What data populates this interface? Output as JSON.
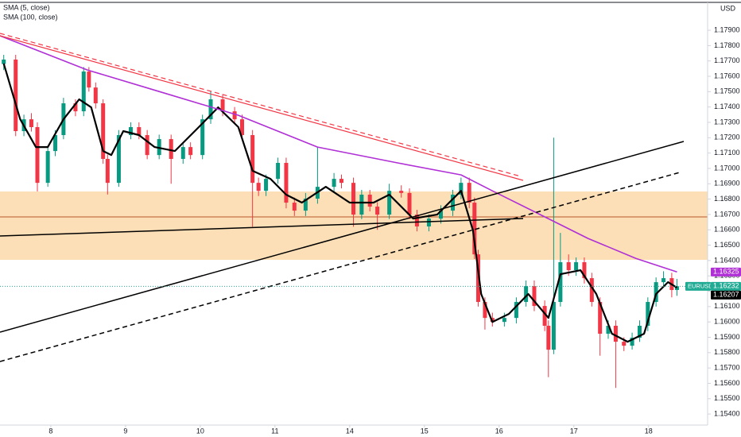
{
  "chart_data": {
    "type": "candlestick",
    "currency": "USD",
    "xlim": [
      -0.68,
      8.79
    ],
    "ylim": [
      1.15328,
      1.18097
    ],
    "xticks": [
      {
        "value": 0,
        "label": "8"
      },
      {
        "value": 1,
        "label": "9"
      },
      {
        "value": 2,
        "label": "10"
      },
      {
        "value": 3,
        "label": "11"
      },
      {
        "value": 4,
        "label": "14"
      },
      {
        "value": 5,
        "label": "15"
      },
      {
        "value": 6,
        "label": "16"
      },
      {
        "value": 7,
        "label": "17"
      },
      {
        "value": 8,
        "label": "18"
      }
    ],
    "yticks": [
      {
        "value": 1.179,
        "label": "1.17900"
      },
      {
        "value": 1.178,
        "label": "1.17800"
      },
      {
        "value": 1.177,
        "label": "1.17700"
      },
      {
        "value": 1.176,
        "label": "1.17600"
      },
      {
        "value": 1.175,
        "label": "1.17500"
      },
      {
        "value": 1.174,
        "label": "1.17400"
      },
      {
        "value": 1.173,
        "label": "1.17300"
      },
      {
        "value": 1.172,
        "label": "1.17200"
      },
      {
        "value": 1.171,
        "label": "1.17100"
      },
      {
        "value": 1.17,
        "label": "1.17000"
      },
      {
        "value": 1.169,
        "label": "1.16900"
      },
      {
        "value": 1.168,
        "label": "1.16800"
      },
      {
        "value": 1.167,
        "label": "1.16700"
      },
      {
        "value": 1.166,
        "label": "1.16600"
      },
      {
        "value": 1.165,
        "label": "1.16500"
      },
      {
        "value": 1.164,
        "label": "1.16400"
      },
      {
        "value": 1.163,
        "label": "1.16300"
      },
      {
        "value": 1.162,
        "label": "1.16200"
      },
      {
        "value": 1.161,
        "label": "1.16100"
      },
      {
        "value": 1.16,
        "label": "1.16000"
      },
      {
        "value": 1.159,
        "label": "1.15900"
      },
      {
        "value": 1.158,
        "label": "1.15800"
      },
      {
        "value": 1.157,
        "label": "1.15700"
      },
      {
        "value": 1.156,
        "label": "1.15600"
      },
      {
        "value": 1.155,
        "label": "1.15500"
      },
      {
        "value": 1.154,
        "label": "1.15400"
      }
    ],
    "up_color": "#089981",
    "down_color": "#f23645",
    "candles": {
      "x": [
        -0.63,
        -0.47,
        -0.36,
        -0.26,
        -0.18,
        -0.04,
        0.06,
        0.17,
        0.33,
        0.44,
        0.51,
        0.6,
        0.7,
        0.76,
        0.91,
        1.07,
        1.18,
        1.29,
        1.45,
        1.61,
        1.77,
        1.87,
        2.03,
        2.14,
        2.3,
        2.46,
        2.56,
        2.7,
        2.78,
        2.88,
        3.04,
        3.15,
        3.26,
        3.41,
        3.57,
        3.79,
        3.89,
        4.05,
        4.16,
        4.27,
        4.37,
        4.53,
        4.69,
        4.8,
        4.9,
        5.06,
        5.22,
        5.38,
        5.49,
        5.6,
        5.67,
        5.72,
        5.81,
        5.91,
        6.07,
        6.23,
        6.36,
        6.47,
        6.61,
        6.66,
        6.73,
        6.82,
        6.93,
        7.03,
        7.14,
        7.24,
        7.35,
        7.46,
        7.56,
        7.67,
        7.78,
        7.88,
        7.99,
        8.1,
        8.2,
        8.31,
        8.38
      ],
      "open": [
        1.1768,
        1.17709,
        1.17243,
        1.1732,
        1.17269,
        1.16906,
        1.17113,
        1.17217,
        1.17424,
        1.17372,
        1.17631,
        1.17527,
        1.17424,
        1.17062,
        1.16906,
        1.17217,
        1.17269,
        1.17217,
        1.17087,
        1.17191,
        1.17062,
        1.17139,
        1.17087,
        1.1732,
        1.1745,
        1.17372,
        1.1732,
        1.17217,
        1.16906,
        1.16854,
        1.16932,
        1.17036,
        1.16777,
        1.16725,
        1.16803,
        1.1688,
        1.16932,
        1.16906,
        1.16699,
        1.16829,
        1.16751,
        1.16699,
        1.16854,
        1.1684,
        1.16699,
        1.16622,
        1.16673,
        1.16725,
        1.16829,
        1.16906,
        1.16777,
        1.1644,
        1.1613,
        1.16026,
        1.16,
        1.16026,
        1.1613,
        1.16233,
        1.16104,
        1.15975,
        1.15819,
        1.1613,
        1.16389,
        1.16337,
        1.16389,
        1.16285,
        1.1613,
        1.15923,
        1.15975,
        1.15871,
        1.15845,
        1.15897,
        1.15975,
        1.1613,
        1.16259,
        1.16285,
        1.16208
      ],
      "high": [
        1.1774,
        1.1774,
        1.1735,
        1.1736,
        1.173,
        1.1714,
        1.1725,
        1.1746,
        1.1745,
        1.1766,
        1.1766,
        1.1756,
        1.1745,
        1.1709,
        1.1725,
        1.173,
        1.173,
        1.1725,
        1.1722,
        1.1722,
        1.1717,
        1.1717,
        1.1735,
        1.175,
        1.1748,
        1.174,
        1.1735,
        1.1725,
        1.1694,
        1.1696,
        1.1707,
        1.1707,
        1.1681,
        1.1684,
        1.1714,
        1.1697,
        1.1696,
        1.1694,
        1.1686,
        1.1686,
        1.1678,
        1.169,
        1.1689,
        1.1687,
        1.1673,
        1.167,
        1.1676,
        1.1686,
        1.1694,
        1.1694,
        1.1681,
        1.1647,
        1.1616,
        1.1606,
        1.1606,
        1.1616,
        1.1627,
        1.1627,
        1.1614,
        1.1601,
        1.172,
        1.1658,
        1.1644,
        1.1642,
        1.1642,
        1.1632,
        1.1616,
        1.1601,
        1.1601,
        1.159,
        1.1593,
        1.1601,
        1.1616,
        1.1629,
        1.1633,
        1.1632,
        1.1628
      ],
      "low": [
        1.1764,
        1.1721,
        1.1721,
        1.1724,
        1.1685,
        1.1688,
        1.1708,
        1.1719,
        1.1734,
        1.1734,
        1.175,
        1.1739,
        1.1703,
        1.1683,
        1.1688,
        1.1719,
        1.1719,
        1.1706,
        1.1706,
        1.169,
        1.1703,
        1.1706,
        1.1706,
        1.1729,
        1.1734,
        1.1729,
        1.1719,
        1.1662,
        1.1682,
        1.1682,
        1.169,
        1.1674,
        1.1669,
        1.1669,
        1.1677,
        1.1685,
        1.1687,
        1.1662,
        1.1667,
        1.1672,
        1.166,
        1.1667,
        1.1681,
        1.1667,
        1.1659,
        1.1659,
        1.1664,
        1.1669,
        1.168,
        1.1674,
        1.1641,
        1.161,
        1.1595,
        1.1597,
        1.1597,
        1.1599,
        1.161,
        1.1607,
        1.1594,
        1.1564,
        1.1579,
        1.161,
        1.163,
        1.163,
        1.1625,
        1.161,
        1.1578,
        1.1589,
        1.1557,
        1.1581,
        1.1582,
        1.1587,
        1.1594,
        1.161,
        1.1623,
        1.1616,
        1.1617
      ],
      "close": [
        1.17709,
        1.17243,
        1.1732,
        1.17269,
        1.16906,
        1.17113,
        1.17217,
        1.17424,
        1.17372,
        1.17631,
        1.17527,
        1.17424,
        1.17062,
        1.16906,
        1.17217,
        1.17269,
        1.17217,
        1.17087,
        1.17191,
        1.17062,
        1.17139,
        1.17087,
        1.1732,
        1.1745,
        1.17372,
        1.1732,
        1.17217,
        1.16906,
        1.16854,
        1.16932,
        1.17036,
        1.16777,
        1.16725,
        1.16803,
        1.1688,
        1.16932,
        1.16906,
        1.16699,
        1.16829,
        1.16751,
        1.16699,
        1.16854,
        1.1684,
        1.16699,
        1.16622,
        1.16673,
        1.16725,
        1.16829,
        1.16906,
        1.16777,
        1.1644,
        1.1613,
        1.16026,
        1.16,
        1.16026,
        1.1613,
        1.16233,
        1.16104,
        1.15975,
        1.15819,
        1.1613,
        1.16389,
        1.16337,
        1.16389,
        1.16285,
        1.1613,
        1.15923,
        1.15975,
        1.15871,
        1.15845,
        1.15897,
        1.15975,
        1.1613,
        1.16259,
        1.16285,
        1.16208,
        1.16232
      ]
    },
    "series": [
      {
        "name": "SMA (5, close)",
        "color": "#000000",
        "x": [
          -0.63,
          -0.41,
          -0.2,
          -0.04,
          0.17,
          0.38,
          0.54,
          0.7,
          0.81,
          0.97,
          1.18,
          1.39,
          1.66,
          1.98,
          2.24,
          2.51,
          2.7,
          2.94,
          3.15,
          3.36,
          3.68,
          4.0,
          4.32,
          4.53,
          4.85,
          5.17,
          5.49,
          5.65,
          5.76,
          5.91,
          6.13,
          6.39,
          6.66,
          6.82,
          7.09,
          7.3,
          7.51,
          7.72,
          7.94,
          8.1,
          8.26,
          8.38
        ],
        "values": [
          1.17683,
          1.1732,
          1.17139,
          1.17139,
          1.1732,
          1.1745,
          1.17398,
          1.17113,
          1.17087,
          1.17243,
          1.17217,
          1.17139,
          1.17113,
          1.17269,
          1.17398,
          1.17269,
          1.16984,
          1.16932,
          1.16829,
          1.16777,
          1.1688,
          1.16777,
          1.16777,
          1.16829,
          1.16673,
          1.16699,
          1.16854,
          1.16596,
          1.16182,
          1.16,
          1.16052,
          1.16182,
          1.16026,
          1.16311,
          1.16337,
          1.16182,
          1.15923,
          1.15871,
          1.15923,
          1.16182,
          1.16259,
          1.16223
        ]
      },
      {
        "name": "SMA (100, close)",
        "color": "#b02fd6",
        "x": [
          -0.68,
          0.49,
          1.45,
          2.51,
          3.57,
          4.64,
          5.49,
          5.91,
          6.55,
          7.19,
          7.83,
          8.38
        ],
        "values": [
          1.17864,
          1.17641,
          1.17501,
          1.17346,
          1.17139,
          1.17036,
          1.16958,
          1.16854,
          1.16699,
          1.16544,
          1.16414,
          1.16326
        ]
      }
    ],
    "tags": [
      {
        "value": 1.16325,
        "color": "#b02fd6"
      },
      {
        "name": "EURUSD",
        "value": 1.16232,
        "color": "#22ab94"
      },
      {
        "value": 1.16207,
        "color": "#000000"
      }
    ]
  }
}
